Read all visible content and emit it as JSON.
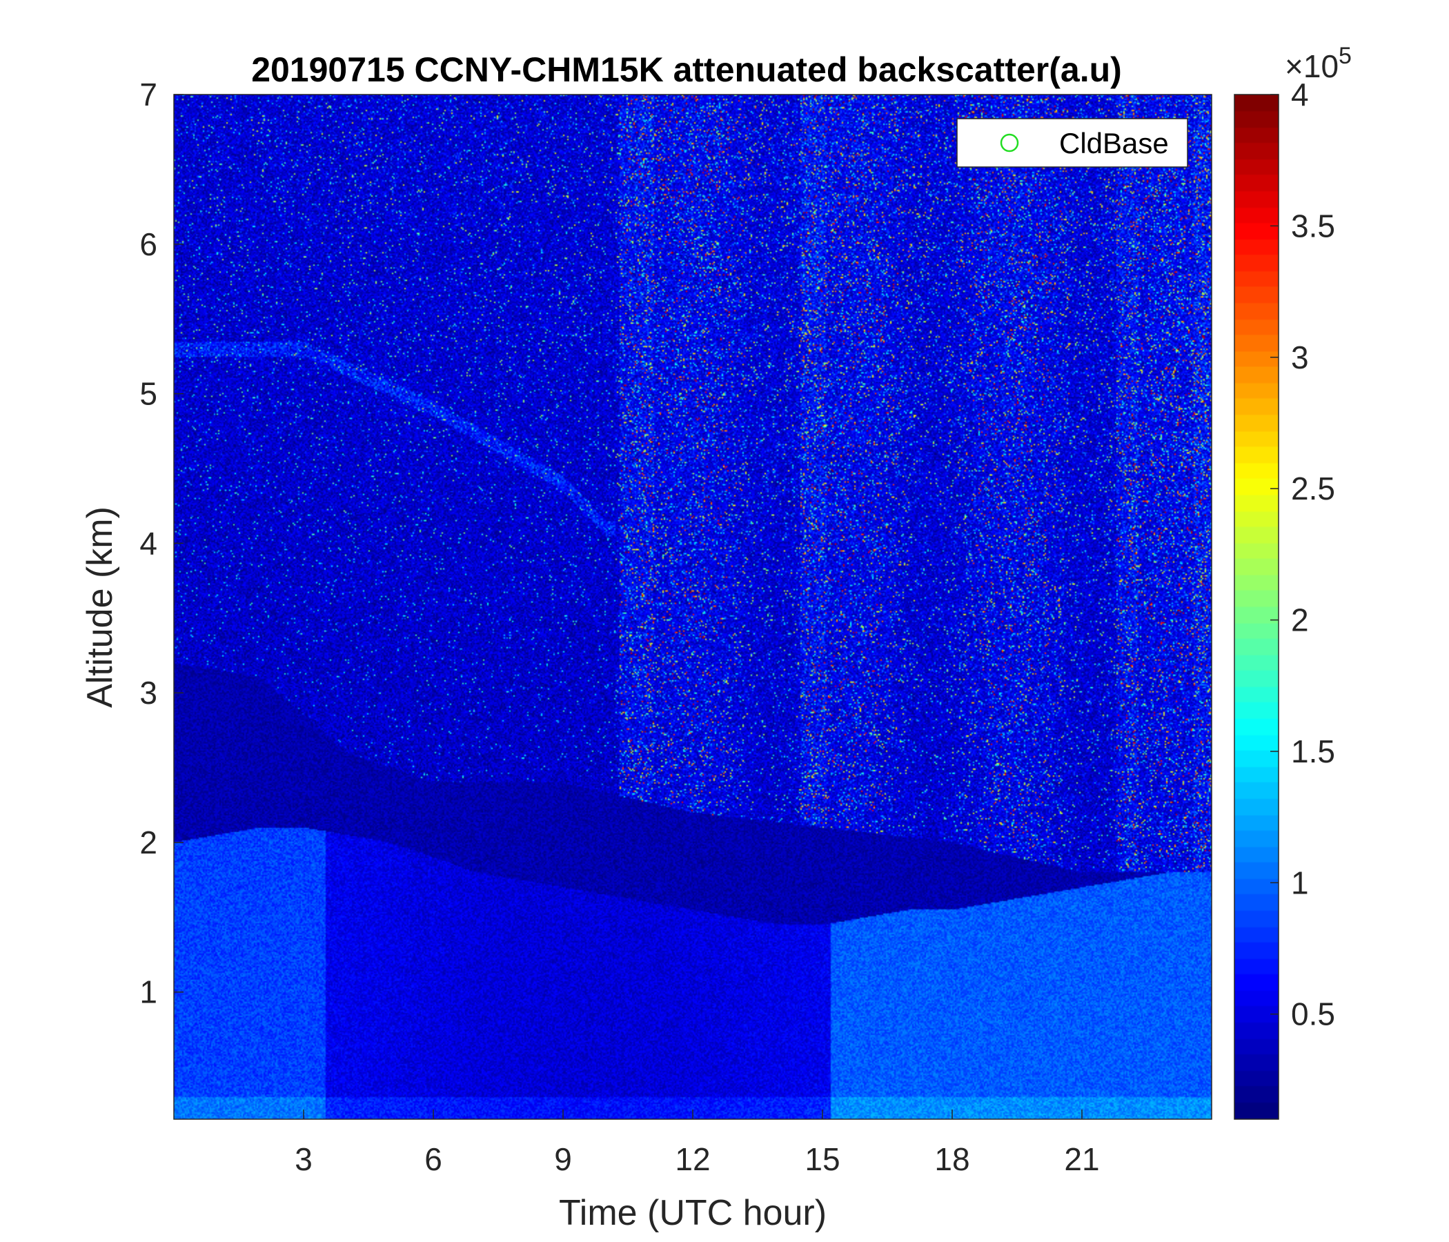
{
  "chart_data": {
    "type": "heatmap",
    "title": "20190715 CCNY-CHM15K attenuated backscatter(a.u)",
    "xlabel": "Time (UTC hour)",
    "ylabel": "Altitude (km)",
    "xlim": [
      0,
      24
    ],
    "ylim": [
      0.15,
      7
    ],
    "x_ticks": [
      3,
      6,
      9,
      12,
      15,
      18,
      21
    ],
    "x_tick_labels": [
      "3",
      "6",
      "9",
      "12",
      "15",
      "18",
      "21"
    ],
    "y_ticks": [
      1,
      2,
      3,
      4,
      5,
      6,
      7
    ],
    "y_tick_labels": [
      "1",
      "2",
      "3",
      "4",
      "5",
      "6",
      "7"
    ],
    "colorbar": {
      "colormap": "jet",
      "range": [
        0.1,
        4
      ],
      "ticks": [
        0.5,
        1,
        1.5,
        2,
        2.5,
        3,
        3.5,
        4
      ],
      "tick_labels": [
        "0.5",
        "1",
        "1.5",
        "2",
        "2.5",
        "3",
        "3.5",
        "4"
      ],
      "exponent_label": "×10",
      "exponent_power": "5"
    },
    "legend": {
      "placement": "top-right",
      "entries": [
        {
          "name": "CldBase",
          "marker": "circle-open",
          "color": "#22dd22"
        }
      ]
    },
    "features": {
      "boundary_layer_top_km": [
        [
          0,
          2.0
        ],
        [
          1,
          2.05
        ],
        [
          2,
          2.1
        ],
        [
          3,
          2.1
        ],
        [
          4,
          2.05
        ],
        [
          5,
          2.0
        ],
        [
          6,
          1.9
        ],
        [
          7,
          1.8
        ],
        [
          8,
          1.75
        ],
        [
          9,
          1.7
        ],
        [
          10,
          1.65
        ],
        [
          11,
          1.6
        ],
        [
          12,
          1.55
        ],
        [
          13,
          1.5
        ],
        [
          14,
          1.45
        ],
        [
          15,
          1.45
        ],
        [
          16,
          1.5
        ],
        [
          17,
          1.55
        ],
        [
          18,
          1.55
        ],
        [
          19,
          1.6
        ],
        [
          20,
          1.65
        ],
        [
          21,
          1.7
        ],
        [
          22,
          1.75
        ],
        [
          23,
          1.8
        ],
        [
          24,
          1.8
        ]
      ],
      "residual_layer_top_km": [
        [
          0,
          3.2
        ],
        [
          2,
          3.1
        ],
        [
          4,
          2.6
        ],
        [
          6,
          2.4
        ],
        [
          9,
          2.4
        ],
        [
          12,
          2.2
        ],
        [
          15,
          2.1
        ],
        [
          18,
          2.0
        ],
        [
          21,
          1.8
        ],
        [
          24,
          1.8
        ]
      ],
      "noisy_columns_hours": [
        [
          10.3,
          11.1
        ],
        [
          14.5,
          15.1
        ],
        [
          21.8,
          22.3
        ],
        [
          23.6,
          24.0
        ]
      ],
      "high_noise_region_hours": [
        10.2,
        24.0
      ],
      "filament_layer": [
        [
          3,
          5.3
        ],
        [
          6,
          4.9
        ],
        [
          9,
          4.4
        ],
        [
          10,
          4.1
        ]
      ]
    }
  }
}
